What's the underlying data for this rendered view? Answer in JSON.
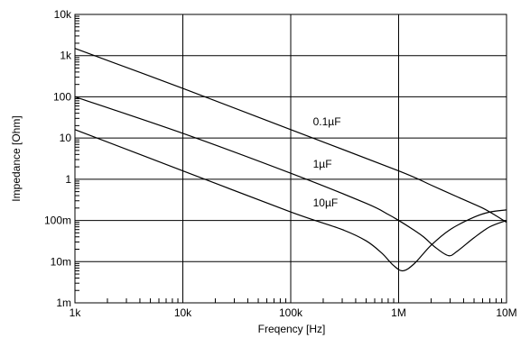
{
  "chart_data": {
    "type": "line",
    "title": "",
    "xlabel": "Freqency [Hz]",
    "ylabel": "Impedance [Ohm]",
    "x_scale": "log",
    "y_scale": "log",
    "xlim": [
      1000,
      10000000
    ],
    "ylim": [
      0.001,
      10000
    ],
    "x_ticks": [
      {
        "value": 1000,
        "label": "1k"
      },
      {
        "value": 10000,
        "label": "10k"
      },
      {
        "value": 100000,
        "label": "100k"
      },
      {
        "value": 1000000,
        "label": "1M"
      },
      {
        "value": 10000000,
        "label": "10M"
      }
    ],
    "y_ticks": [
      {
        "value": 10000,
        "label": "10k"
      },
      {
        "value": 1000,
        "label": "1k"
      },
      {
        "value": 100,
        "label": "100"
      },
      {
        "value": 10,
        "label": "10"
      },
      {
        "value": 1,
        "label": "1"
      },
      {
        "value": 0.1,
        "label": "100m"
      },
      {
        "value": 0.01,
        "label": "10m"
      },
      {
        "value": 0.001,
        "label": "1m"
      }
    ],
    "grid": true,
    "line_color": "#000000",
    "series": [
      {
        "name": "0.1µF",
        "label_at": [
          130000,
          15
        ],
        "x": [
          1000,
          10000,
          100000,
          1000000,
          2000000,
          4000000,
          6000000,
          8000000,
          10000000
        ],
        "y": [
          1500,
          160,
          16,
          1.6,
          0.72,
          0.32,
          0.2,
          0.13,
          0.09
        ]
      },
      {
        "name": "1µF",
        "label_at": [
          130000,
          1.4
        ],
        "x": [
          1000,
          10000,
          100000,
          500000,
          800000,
          1000000,
          1300000,
          1700000,
          2200000,
          2900000,
          3500000,
          5000000,
          7000000,
          10000000
        ],
        "y": [
          100,
          13,
          1.4,
          0.26,
          0.14,
          0.1,
          0.065,
          0.04,
          0.022,
          0.014,
          0.018,
          0.038,
          0.07,
          0.1
        ]
      },
      {
        "name": "10µF",
        "label_at": [
          130000,
          0.16
        ],
        "x": [
          1000,
          10000,
          100000,
          300000,
          500000,
          700000,
          900000,
          1100000,
          1400000,
          2000000,
          3000000,
          5000000,
          7000000,
          10000000
        ],
        "y": [
          16,
          1.6,
          0.16,
          0.06,
          0.032,
          0.016,
          0.008,
          0.006,
          0.009,
          0.025,
          0.06,
          0.12,
          0.16,
          0.18
        ]
      }
    ]
  }
}
